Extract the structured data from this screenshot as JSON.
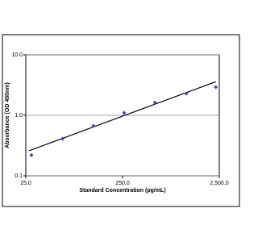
{
  "chart_data": {
    "type": "scatter",
    "x_label": "Standard Concentration (pg/mL)",
    "y_label": "Absorbance (OD 450nm)",
    "x": [
      28.6,
      60,
      125,
      260,
      540,
      1140,
      2300
    ],
    "series": [
      {
        "color": "#5a3d9a",
        "values": [
          0.22,
          0.41,
          0.67,
          1.1,
          1.63,
          2.29,
          2.93
        ]
      }
    ],
    "trend_line": {
      "color": "#000000",
      "x": [
        27,
        2300
      ],
      "y": [
        0.26,
        3.6
      ]
    },
    "log_x": true,
    "log_y": true,
    "xlim": [
      25,
      2500
    ],
    "ylim": [
      0.1,
      10
    ],
    "xticks": [
      {
        "value": 25,
        "label": "25.0"
      },
      {
        "value": 250,
        "label": "250.0"
      },
      {
        "value": 2500,
        "label": "2,500.0"
      }
    ],
    "yticks": [
      {
        "value": 0.1,
        "label": "0.1"
      },
      {
        "value": 1,
        "label": "1.0"
      },
      {
        "value": 10,
        "label": "10.0"
      }
    ],
    "grid": true
  }
}
